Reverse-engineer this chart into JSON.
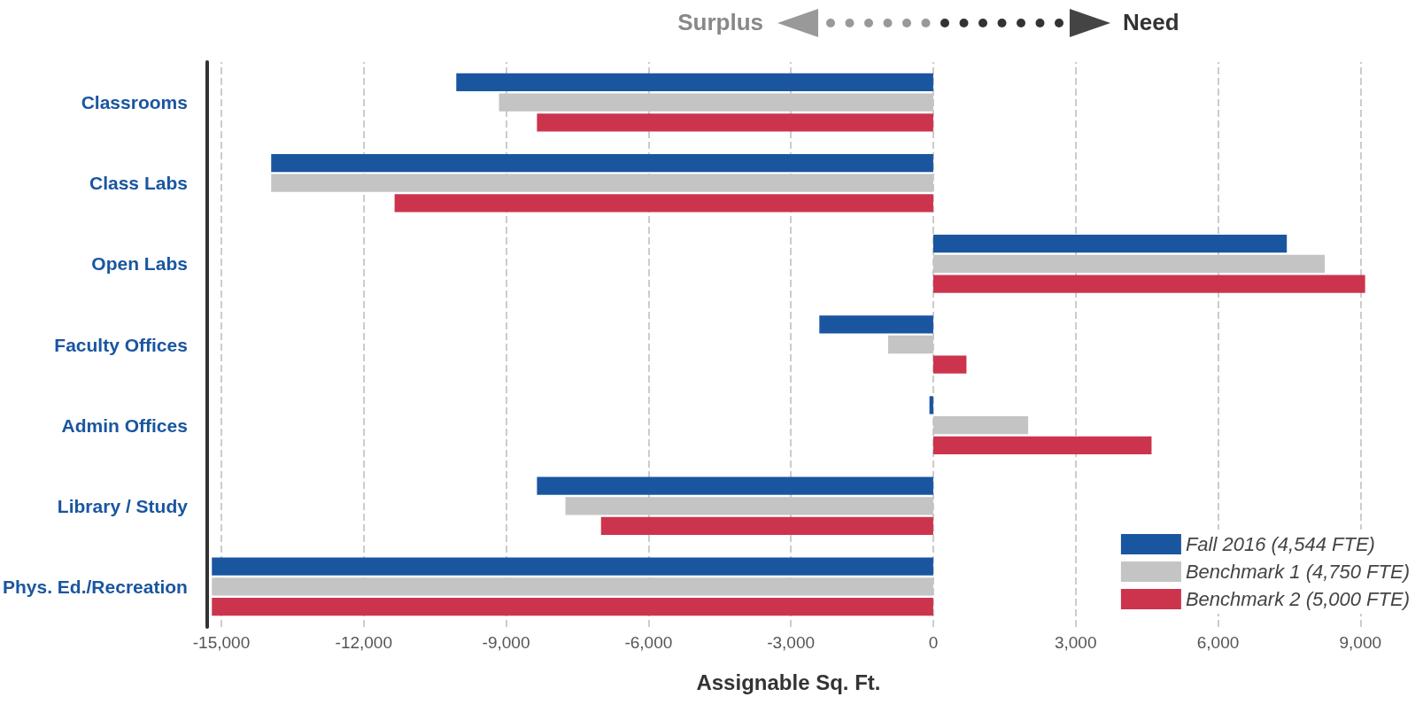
{
  "chart_data": {
    "type": "bar",
    "orientation": "horizontal",
    "xlabel": "Assignable Sq. Ft.",
    "annotations": [
      "Surplus",
      "Need"
    ],
    "categories": [
      "Classrooms",
      "Class Labs",
      "Open Labs",
      "Faculty Offices",
      "Admin Offices",
      "Library / Study",
      "Phys. Ed./Recreation"
    ],
    "series": [
      {
        "name": "Fall 2016 (4,544 FTE)",
        "color": "#1a56a0",
        "values": [
          -10050,
          -13950,
          7450,
          -2400,
          -80,
          -8350,
          -15200
        ]
      },
      {
        "name": "Benchmark 1 (4,750 FTE)",
        "color": "#c4c4c4",
        "values": [
          -9150,
          -13950,
          8250,
          -950,
          2000,
          -7750,
          -15200
        ]
      },
      {
        "name": "Benchmark 2 (5,000 FTE)",
        "color": "#cc344e",
        "values": [
          -8350,
          -11350,
          9100,
          700,
          4600,
          -7000,
          -15200
        ]
      }
    ],
    "xlim": [
      -15300,
      9200
    ],
    "xticks": [
      {
        "value": -15000,
        "label": "-15,000"
      },
      {
        "value": -12000,
        "label": "-12,000"
      },
      {
        "value": -9000,
        "label": "-9,000"
      },
      {
        "value": -6000,
        "label": "-6,000"
      },
      {
        "value": -3000,
        "label": "-3,000"
      },
      0,
      {
        "value": 3000,
        "label": "3,000"
      },
      {
        "value": 6000,
        "label": "6,000"
      },
      {
        "value": 9000,
        "label": "9,000"
      }
    ],
    "grid": "x",
    "legend": "bottom right"
  }
}
